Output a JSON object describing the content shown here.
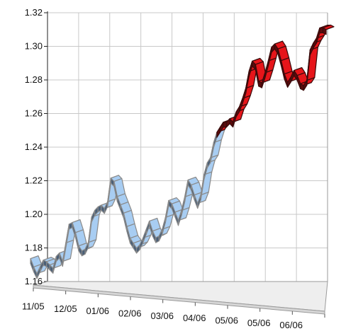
{
  "chart_data": {
    "type": "line",
    "title": "",
    "xlabel": "",
    "ylabel": "",
    "ylim": [
      1.16,
      1.32
    ],
    "y_ticks": [
      "1.16",
      "1.18",
      "1.20",
      "1.22",
      "1.24",
      "1.26",
      "1.28",
      "1.30",
      "1.32"
    ],
    "x_ticks": [
      "11/05",
      "12/05",
      "01/06",
      "02/06",
      "03/06",
      "04/06",
      "05/06",
      "05/06",
      "06/06"
    ],
    "grid": true,
    "three_d": true,
    "series": [
      {
        "name": "",
        "color": "#a8cdf2",
        "side_color": "#4a5f77",
        "edge_color": "#8a8a8a",
        "values": [
          1.177,
          1.172,
          1.168,
          1.172,
          1.176,
          1.175,
          1.173,
          1.171,
          1.178,
          1.18,
          1.175,
          1.186,
          1.197,
          1.198,
          1.192,
          1.184,
          1.181,
          1.182,
          1.186,
          1.201,
          1.205,
          1.207,
          1.208,
          1.206,
          1.21,
          1.224,
          1.222,
          1.213,
          1.208,
          1.203,
          1.195,
          1.188,
          1.185,
          1.182,
          1.184,
          1.188,
          1.193,
          1.198,
          1.192,
          1.188,
          1.189,
          1.193,
          1.2,
          1.21,
          1.208,
          1.203,
          1.198,
          1.204,
          1.212,
          1.222,
          1.219,
          1.213,
          1.208,
          1.213,
          1.225,
          1.232,
          1.235,
          1.244,
          1.25
        ]
      },
      {
        "name": "",
        "color": "#e6151a",
        "side_color": "#5a0b0c",
        "edge_color": "#3a0a0a",
        "values": [
          1.25,
          1.253,
          1.256,
          1.256,
          1.258,
          1.256,
          1.262,
          1.265,
          1.27,
          1.276,
          1.286,
          1.292,
          1.29,
          1.28,
          1.279,
          1.285,
          1.292,
          1.3,
          1.302,
          1.299,
          1.292,
          1.284,
          1.279,
          1.282,
          1.286,
          1.283,
          1.278,
          1.277,
          1.28,
          1.298,
          1.302,
          1.305,
          1.311,
          1.311,
          1.31
        ]
      }
    ]
  }
}
